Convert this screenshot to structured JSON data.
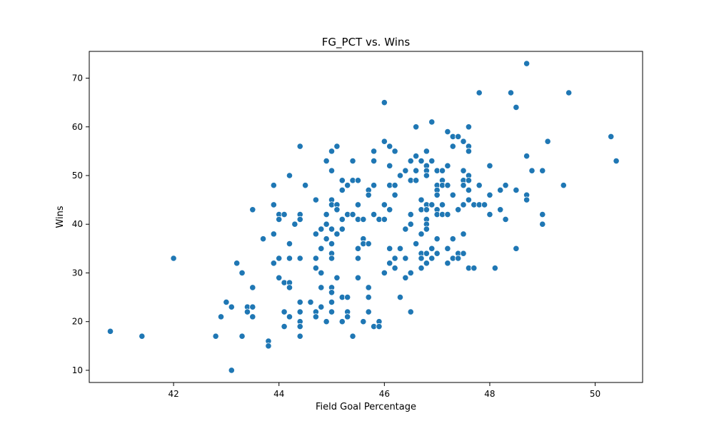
{
  "chart_data": {
    "type": "scatter",
    "title": "FG_PCT vs. Wins",
    "xlabel": "Field Goal Percentage",
    "ylabel": "Wins",
    "xlim": [
      40.4,
      50.9
    ],
    "ylim": [
      7.5,
      75.5
    ],
    "xticks": [
      42,
      44,
      46,
      48,
      50
    ],
    "yticks": [
      10,
      20,
      30,
      40,
      50,
      60,
      70
    ],
    "grid": false,
    "marker_color": "#1f77b4",
    "points": [
      [
        40.8,
        18
      ],
      [
        41.4,
        17
      ],
      [
        42.0,
        33
      ],
      [
        42.8,
        17
      ],
      [
        42.9,
        21
      ],
      [
        43.0,
        24
      ],
      [
        43.1,
        23
      ],
      [
        43.1,
        10
      ],
      [
        43.2,
        32
      ],
      [
        43.3,
        30
      ],
      [
        43.3,
        17
      ],
      [
        43.4,
        23
      ],
      [
        43.4,
        22
      ],
      [
        43.5,
        21
      ],
      [
        43.5,
        23
      ],
      [
        43.5,
        27
      ],
      [
        43.5,
        43
      ],
      [
        43.7,
        37
      ],
      [
        43.8,
        16
      ],
      [
        43.8,
        15
      ],
      [
        43.9,
        48
      ],
      [
        43.9,
        44
      ],
      [
        43.9,
        38
      ],
      [
        43.9,
        32
      ],
      [
        44.0,
        42
      ],
      [
        44.0,
        41
      ],
      [
        44.0,
        33
      ],
      [
        44.0,
        29
      ],
      [
        44.1,
        42
      ],
      [
        44.1,
        28
      ],
      [
        44.1,
        22
      ],
      [
        44.1,
        19
      ],
      [
        44.2,
        50
      ],
      [
        44.2,
        36
      ],
      [
        44.2,
        33
      ],
      [
        44.2,
        28
      ],
      [
        44.2,
        27
      ],
      [
        44.2,
        21
      ],
      [
        44.3,
        40
      ],
      [
        44.4,
        56
      ],
      [
        44.4,
        42
      ],
      [
        44.4,
        41
      ],
      [
        44.4,
        33
      ],
      [
        44.4,
        24
      ],
      [
        44.4,
        22
      ],
      [
        44.4,
        20
      ],
      [
        44.4,
        19
      ],
      [
        44.4,
        17
      ],
      [
        44.5,
        48
      ],
      [
        44.6,
        24
      ],
      [
        44.7,
        45
      ],
      [
        44.7,
        38
      ],
      [
        44.7,
        33
      ],
      [
        44.7,
        31
      ],
      [
        44.7,
        22
      ],
      [
        44.7,
        21
      ],
      [
        44.8,
        39
      ],
      [
        44.8,
        35
      ],
      [
        44.8,
        30
      ],
      [
        44.8,
        27
      ],
      [
        44.8,
        23
      ],
      [
        44.9,
        53
      ],
      [
        44.9,
        42
      ],
      [
        44.9,
        40
      ],
      [
        44.9,
        37
      ],
      [
        44.9,
        20
      ],
      [
        45.0,
        55
      ],
      [
        45.0,
        51
      ],
      [
        45.0,
        45
      ],
      [
        45.0,
        44
      ],
      [
        45.0,
        39
      ],
      [
        45.0,
        36
      ],
      [
        45.0,
        34
      ],
      [
        45.0,
        33
      ],
      [
        45.0,
        27
      ],
      [
        45.0,
        26
      ],
      [
        45.0,
        24
      ],
      [
        45.0,
        22
      ],
      [
        45.1,
        56
      ],
      [
        45.1,
        44
      ],
      [
        45.1,
        43
      ],
      [
        45.1,
        38
      ],
      [
        45.1,
        29
      ],
      [
        45.2,
        49
      ],
      [
        45.2,
        47
      ],
      [
        45.2,
        41
      ],
      [
        45.2,
        39
      ],
      [
        45.2,
        25
      ],
      [
        45.2,
        20
      ],
      [
        45.3,
        48
      ],
      [
        45.3,
        42
      ],
      [
        45.3,
        25
      ],
      [
        45.3,
        22
      ],
      [
        45.3,
        21
      ],
      [
        45.4,
        53
      ],
      [
        45.4,
        49
      ],
      [
        45.4,
        42
      ],
      [
        45.4,
        17
      ],
      [
        45.5,
        49
      ],
      [
        45.5,
        44
      ],
      [
        45.5,
        41
      ],
      [
        45.5,
        35
      ],
      [
        45.5,
        33
      ],
      [
        45.5,
        29
      ],
      [
        45.6,
        41
      ],
      [
        45.6,
        37
      ],
      [
        45.6,
        36
      ],
      [
        45.6,
        20
      ],
      [
        45.7,
        47
      ],
      [
        45.7,
        46
      ],
      [
        45.7,
        36
      ],
      [
        45.7,
        27
      ],
      [
        45.7,
        25
      ],
      [
        45.7,
        22
      ],
      [
        45.8,
        55
      ],
      [
        45.8,
        53
      ],
      [
        45.8,
        48
      ],
      [
        45.8,
        42
      ],
      [
        45.8,
        19
      ],
      [
        45.9,
        41
      ],
      [
        45.9,
        20
      ],
      [
        45.9,
        19
      ],
      [
        46.0,
        65
      ],
      [
        46.0,
        57
      ],
      [
        46.0,
        44
      ],
      [
        46.0,
        41
      ],
      [
        46.0,
        30
      ],
      [
        46.1,
        56
      ],
      [
        46.1,
        52
      ],
      [
        46.1,
        48
      ],
      [
        46.1,
        43
      ],
      [
        46.1,
        35
      ],
      [
        46.1,
        32
      ],
      [
        46.2,
        55
      ],
      [
        46.2,
        48
      ],
      [
        46.2,
        46
      ],
      [
        46.2,
        33
      ],
      [
        46.2,
        31
      ],
      [
        46.3,
        50
      ],
      [
        46.3,
        35
      ],
      [
        46.3,
        25
      ],
      [
        46.4,
        51
      ],
      [
        46.4,
        39
      ],
      [
        46.4,
        33
      ],
      [
        46.4,
        29
      ],
      [
        46.5,
        53
      ],
      [
        46.5,
        49
      ],
      [
        46.5,
        42
      ],
      [
        46.5,
        40
      ],
      [
        46.5,
        30
      ],
      [
        46.5,
        22
      ],
      [
        46.6,
        60
      ],
      [
        46.6,
        54
      ],
      [
        46.6,
        51
      ],
      [
        46.6,
        49
      ],
      [
        46.6,
        36
      ],
      [
        46.7,
        53
      ],
      [
        46.7,
        45
      ],
      [
        46.7,
        43
      ],
      [
        46.7,
        38
      ],
      [
        46.7,
        34
      ],
      [
        46.7,
        33
      ],
      [
        46.7,
        31
      ],
      [
        46.8,
        55
      ],
      [
        46.8,
        52
      ],
      [
        46.8,
        51
      ],
      [
        46.8,
        50
      ],
      [
        46.8,
        44
      ],
      [
        46.8,
        43
      ],
      [
        46.8,
        41
      ],
      [
        46.8,
        40
      ],
      [
        46.8,
        39
      ],
      [
        46.8,
        34
      ],
      [
        46.8,
        32
      ],
      [
        46.9,
        61
      ],
      [
        46.9,
        53
      ],
      [
        46.9,
        44
      ],
      [
        46.9,
        35
      ],
      [
        46.9,
        33
      ],
      [
        47.0,
        51
      ],
      [
        47.0,
        48
      ],
      [
        47.0,
        47
      ],
      [
        47.0,
        46
      ],
      [
        47.0,
        43
      ],
      [
        47.0,
        42
      ],
      [
        47.0,
        37
      ],
      [
        47.0,
        34
      ],
      [
        47.1,
        51
      ],
      [
        47.1,
        49
      ],
      [
        47.1,
        48
      ],
      [
        47.1,
        44
      ],
      [
        47.1,
        42
      ],
      [
        47.2,
        59
      ],
      [
        47.2,
        52
      ],
      [
        47.2,
        48
      ],
      [
        47.2,
        42
      ],
      [
        47.2,
        35
      ],
      [
        47.2,
        32
      ],
      [
        47.3,
        58
      ],
      [
        47.3,
        56
      ],
      [
        47.3,
        46
      ],
      [
        47.3,
        37
      ],
      [
        47.3,
        33
      ],
      [
        47.4,
        58
      ],
      [
        47.4,
        43
      ],
      [
        47.4,
        34
      ],
      [
        47.4,
        33
      ],
      [
        47.5,
        57
      ],
      [
        47.5,
        51
      ],
      [
        47.5,
        49
      ],
      [
        47.5,
        48
      ],
      [
        47.5,
        44
      ],
      [
        47.5,
        38
      ],
      [
        47.5,
        34
      ],
      [
        47.6,
        60
      ],
      [
        47.6,
        56
      ],
      [
        47.6,
        55
      ],
      [
        47.6,
        50
      ],
      [
        47.6,
        49
      ],
      [
        47.6,
        47
      ],
      [
        47.6,
        45
      ],
      [
        47.6,
        31
      ],
      [
        47.7,
        44
      ],
      [
        47.7,
        31
      ],
      [
        47.8,
        67
      ],
      [
        47.8,
        48
      ],
      [
        47.8,
        44
      ],
      [
        47.9,
        44
      ],
      [
        48.0,
        52
      ],
      [
        48.0,
        46
      ],
      [
        48.0,
        42
      ],
      [
        48.1,
        31
      ],
      [
        48.2,
        47
      ],
      [
        48.2,
        43
      ],
      [
        48.3,
        48
      ],
      [
        48.3,
        41
      ],
      [
        48.4,
        67
      ],
      [
        48.5,
        64
      ],
      [
        48.5,
        47
      ],
      [
        48.5,
        35
      ],
      [
        48.7,
        73
      ],
      [
        48.7,
        54
      ],
      [
        48.7,
        46
      ],
      [
        48.7,
        45
      ],
      [
        48.8,
        51
      ],
      [
        49.0,
        51
      ],
      [
        49.0,
        42
      ],
      [
        49.0,
        40
      ],
      [
        49.1,
        57
      ],
      [
        49.4,
        48
      ],
      [
        49.5,
        67
      ],
      [
        50.3,
        58
      ],
      [
        50.4,
        53
      ]
    ]
  }
}
